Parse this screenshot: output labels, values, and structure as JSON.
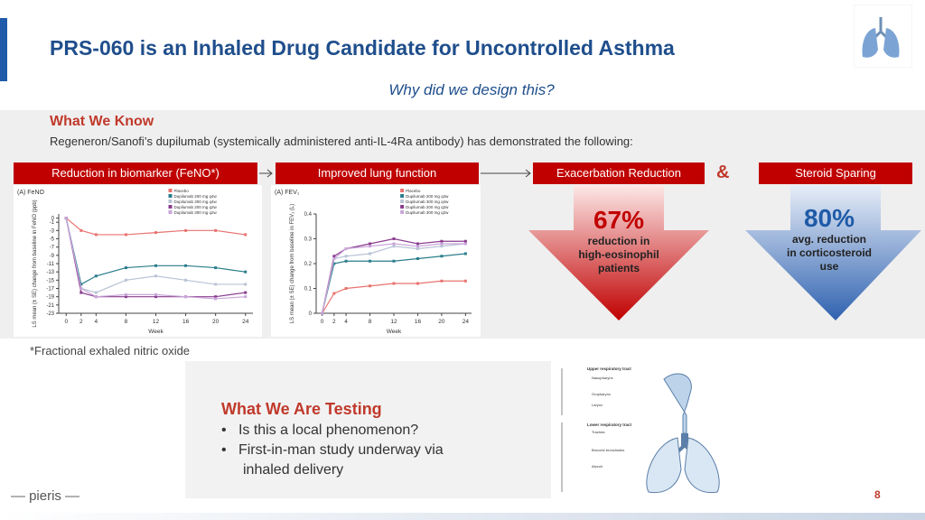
{
  "header": {
    "title": "PRS-060 is an Inhaled Drug Candidate for Uncontrolled Asthma",
    "subtitle": "Why did we design this?"
  },
  "know": {
    "heading": "What We Know",
    "text": "Regeneron/Sanofi’s dupilumab (systemically administered anti-IL-4Ra antibody) has demonstrated the following:"
  },
  "steps": [
    "Reduction in biomarker (FeNO*)",
    "Improved lung function",
    "Exacerbation Reduction",
    "Steroid Sparing"
  ],
  "ampersand": "&",
  "charts": [
    {
      "type": "line",
      "title": "(A)  FeNO",
      "ylabel": "LS mean (± SE) change from baseline in FeNO (ppb)",
      "xlabel": "Week",
      "x": [
        0,
        2,
        4,
        8,
        12,
        16,
        20,
        24
      ],
      "xlim": [
        -1,
        25
      ],
      "xticks": [
        0,
        2,
        4,
        8,
        12,
        16,
        20,
        24
      ],
      "ylim": [
        -23,
        1
      ],
      "yticks": [
        0,
        -1,
        -3,
        -5,
        -7,
        -9,
        -11,
        -13,
        -15,
        -17,
        -19,
        -21,
        -23
      ],
      "series": [
        {
          "name": "Placebo",
          "color": "#e8736f",
          "values": [
            0,
            -3,
            -4,
            -4,
            -3.5,
            -3,
            -3,
            -4
          ]
        },
        {
          "name": "Dupilumab 200 mg q4w",
          "color": "#2a7d8c",
          "values": [
            0,
            -16,
            -14,
            -12,
            -11.5,
            -11.5,
            -12,
            -13
          ]
        },
        {
          "name": "Dupilumab 300 mg q4w",
          "color": "#b9c3d6",
          "values": [
            0,
            -17,
            -18,
            -15,
            -14,
            -15,
            -16,
            -16
          ]
        },
        {
          "name": "Dupilumab 200 mg q2w",
          "color": "#8a3d8f",
          "values": [
            0,
            -18,
            -19,
            -19,
            -19,
            -19,
            -19,
            -18
          ]
        },
        {
          "name": "Dupilumab 300 mg q2w",
          "color": "#c9a6d9",
          "values": [
            0,
            -17,
            -19,
            -18.5,
            -18.5,
            -19,
            -19.5,
            -19
          ]
        }
      ]
    },
    {
      "type": "line",
      "title": "(A)  FEV₁",
      "ylabel": "LS mean (± SE) change from baseline in FEV₁ (L)",
      "xlabel": "Week",
      "x": [
        0,
        2,
        4,
        8,
        12,
        16,
        20,
        24
      ],
      "xlim": [
        -1,
        25
      ],
      "xticks": [
        0,
        2,
        4,
        8,
        12,
        16,
        20,
        24
      ],
      "ylim": [
        0,
        0.4
      ],
      "yticks": [
        0,
        0.1,
        0.2,
        0.3,
        0.4
      ],
      "series": [
        {
          "name": "Placebo",
          "color": "#e8736f",
          "values": [
            0,
            0.08,
            0.1,
            0.11,
            0.12,
            0.12,
            0.13,
            0.13
          ]
        },
        {
          "name": "Dupilumab 200 mg q4w",
          "color": "#2a7d8c",
          "values": [
            0,
            0.2,
            0.21,
            0.21,
            0.21,
            0.22,
            0.23,
            0.24
          ]
        },
        {
          "name": "Dupilumab 300 mg q4w",
          "color": "#b9c3d6",
          "values": [
            0,
            0.22,
            0.23,
            0.24,
            0.27,
            0.26,
            0.27,
            0.28
          ]
        },
        {
          "name": "Dupilumab 200 mg q2w",
          "color": "#8a3d8f",
          "values": [
            0,
            0.23,
            0.26,
            0.28,
            0.3,
            0.28,
            0.29,
            0.29
          ]
        },
        {
          "name": "Dupilumab 300 mg q2w",
          "color": "#c9a6d9",
          "values": [
            0,
            0.22,
            0.26,
            0.27,
            0.28,
            0.27,
            0.28,
            0.28
          ]
        }
      ]
    }
  ],
  "stats": [
    {
      "value": "67%",
      "lines": [
        "reduction in",
        "high-eosinophil",
        "patients"
      ]
    },
    {
      "value": "80%",
      "lines": [
        "avg. reduction",
        "in corticosteroid",
        "use"
      ]
    }
  ],
  "footnote": "*Fractional exhaled nitric oxide",
  "testing": {
    "heading": "What We Are Testing",
    "bullets": [
      "Is this a local phenomenon?",
      "First-in-man study underway via"
    ],
    "continuation": "inhaled delivery"
  },
  "anatomy": [
    "Upper respiratory tract",
    "Nasopharynx",
    "Oropharynx",
    "Larynx",
    "Lower respiratory tract",
    "Trachea",
    "Bronchi/ bronchioles",
    "Alveoli"
  ],
  "logo": "pieris",
  "page": "8"
}
